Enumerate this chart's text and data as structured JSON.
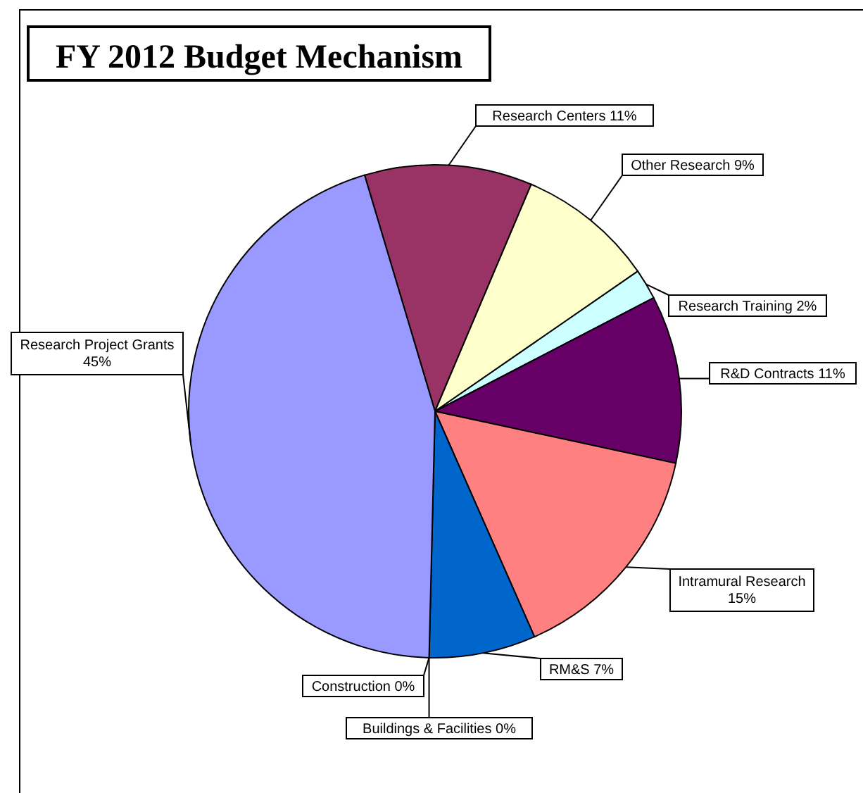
{
  "chart_data": {
    "type": "pie",
    "title": "FY  2012 Budget Mechanism",
    "categories": [
      "Research Centers",
      "Other Research",
      "Research Training",
      "R&D Contracts",
      "Intramural  Research",
      "RM&S",
      "Buildings & Facilities",
      "Construction",
      "Research Project Grants"
    ],
    "values": [
      11,
      9,
      2,
      11,
      15,
      7,
      0,
      0,
      45
    ],
    "value_labels": [
      "11%",
      "9%",
      "2%",
      "11%",
      "15%",
      "7%",
      "0%",
      "0%",
      "45%"
    ],
    "colors": [
      "#993366",
      "#ffffcc",
      "#ccffff",
      "#660066",
      "#ff8080",
      "#0066cc",
      null,
      null,
      "#9999ff"
    ],
    "data_labels": true
  }
}
